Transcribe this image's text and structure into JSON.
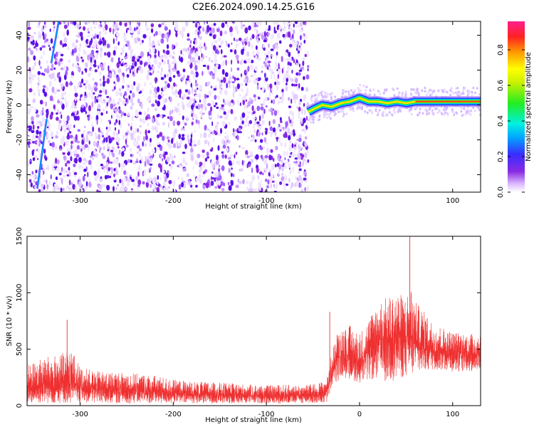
{
  "figure": {
    "title": "C2E6.2024.090.14.25.G16"
  },
  "chart_data": [
    {
      "type": "heatmap",
      "title": "C2E6.2024.090.14.25.G16",
      "xlabel": "Height of straight line (km)",
      "ylabel": "Frequency (Hz)",
      "xlim": [
        -357,
        130
      ],
      "ylim": [
        -50,
        48
      ],
      "xticks": [
        -300,
        -200,
        -100,
        0,
        100
      ],
      "xtick_labels": [
        "-300",
        "-200",
        "-100",
        "0",
        "100"
      ],
      "yticks": [
        -40,
        -20,
        0,
        20,
        40
      ],
      "ytick_labels": [
        "-40",
        "-20",
        "0",
        "20",
        "40"
      ],
      "noise_region_x": [
        -357,
        -55
      ],
      "signal_ridge": {
        "x": [
          -55,
          -48,
          -40,
          -30,
          -20,
          -10,
          0,
          10,
          20,
          30,
          40,
          50,
          60,
          80,
          100,
          130
        ],
        "frequency": [
          -4,
          -2,
          0,
          -1,
          1,
          2,
          4,
          2,
          2,
          1,
          2,
          1,
          2,
          2,
          2,
          2
        ]
      },
      "streak_segments": [
        {
          "x": [
            -346,
            -336
          ],
          "frequency": [
            -48,
            -8
          ]
        },
        {
          "x": [
            -331,
            -323
          ],
          "frequency": [
            24,
            48
          ]
        }
      ],
      "colorbar": {
        "label": "Normalized spectral amplitude",
        "ticks": [
          0.0,
          0.2,
          0.4,
          0.6,
          0.8
        ],
        "tick_labels": [
          "0.0",
          "0.2",
          "0.4",
          "0.6",
          "0.8"
        ],
        "range": [
          0,
          0.96
        ],
        "colormap": "rainbow (white-violet-blue-cyan-green-yellow-orange-red-magenta)"
      },
      "grid": false
    },
    {
      "type": "line",
      "xlabel": "Height of straight line (km)",
      "ylabel": "SNR (10 * v/v)",
      "xlim": [
        -357,
        130
      ],
      "ylim": [
        0,
        1500
      ],
      "xticks": [
        -300,
        -200,
        -100,
        0,
        100
      ],
      "xtick_labels": [
        "-300",
        "-200",
        "-100",
        "0",
        "100"
      ],
      "yticks": [
        0,
        500,
        1000,
        1500
      ],
      "ytick_labels": [
        "0",
        "500",
        "1000",
        "1500"
      ],
      "color": "#ef3030",
      "envelope": {
        "x": [
          -357,
          -340,
          -320,
          -310,
          -300,
          -280,
          -250,
          -220,
          -200,
          -180,
          -150,
          -120,
          -100,
          -80,
          -60,
          -45,
          -35,
          -30,
          -25,
          -20,
          -10,
          0,
          10,
          20,
          30,
          40,
          50,
          55,
          60,
          70,
          80,
          100,
          120,
          130
        ],
        "upper": [
          400,
          480,
          520,
          600,
          380,
          340,
          330,
          300,
          260,
          240,
          230,
          210,
          200,
          210,
          200,
          220,
          260,
          500,
          680,
          750,
          780,
          700,
          850,
          1000,
          1050,
          1100,
          1050,
          1180,
          1000,
          900,
          780,
          700,
          680,
          700
        ],
        "lower": [
          20,
          20,
          20,
          20,
          20,
          20,
          20,
          20,
          20,
          20,
          20,
          20,
          20,
          20,
          20,
          20,
          20,
          150,
          200,
          250,
          230,
          200,
          220,
          240,
          200,
          230,
          250,
          260,
          280,
          300,
          320,
          300,
          300,
          320
        ],
        "mean": [
          180,
          200,
          210,
          220,
          180,
          160,
          150,
          140,
          120,
          110,
          105,
          100,
          95,
          100,
          100,
          110,
          140,
          300,
          420,
          480,
          450,
          400,
          500,
          600,
          620,
          640,
          620,
          650,
          600,
          560,
          520,
          480,
          470,
          480
        ]
      },
      "peaks": [
        {
          "x": -314,
          "y": 760
        },
        {
          "x": 54,
          "y": 1510
        },
        {
          "x": -32,
          "y": 830
        }
      ],
      "grid": false
    }
  ]
}
